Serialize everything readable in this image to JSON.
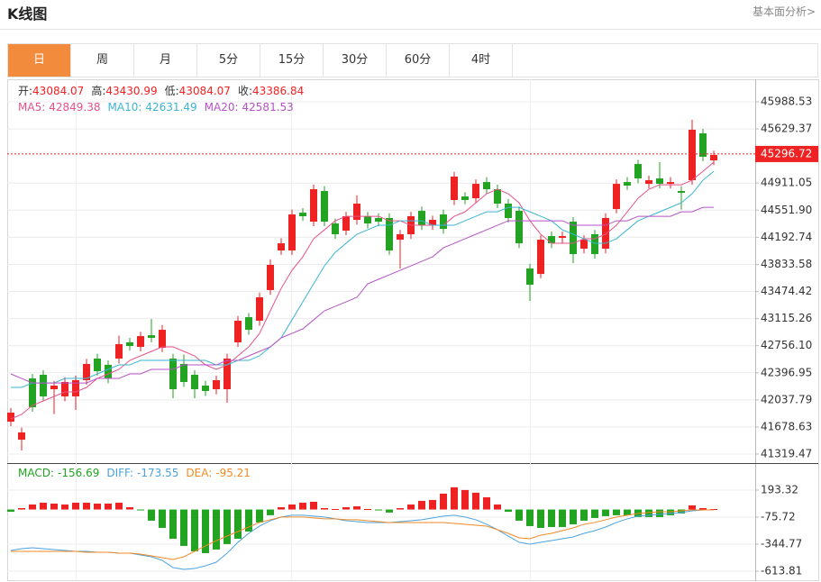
{
  "header": {
    "title": "K线图",
    "link": "基本面分析>"
  },
  "tabs": [
    "日",
    "周",
    "月",
    "5分",
    "15分",
    "30分",
    "60分",
    "4时"
  ],
  "active_tab": 0,
  "chart_data": [
    {
      "type": "candlestick",
      "ohlc_labels": [
        {
          "label": "开:",
          "value": 43084.07
        },
        {
          "label": "高:",
          "value": 43430.99
        },
        {
          "label": "低:",
          "value": 43084.07
        },
        {
          "label": "收:",
          "value": 43386.84
        }
      ],
      "up_color": "#ee2222",
      "down_color": "#22a322",
      "open": [
        41749,
        41510,
        42322,
        42370,
        42179,
        42084,
        42084,
        42299,
        42585,
        42502,
        42585,
        42800,
        42740,
        42895,
        42728,
        42585,
        42514,
        42370,
        42227,
        42179,
        42179,
        42800,
        43134,
        43087,
        43493,
        44018,
        44018,
        44519,
        44400,
        44806,
        44376,
        44281,
        44424,
        44472,
        44448,
        44448,
        44161,
        44233,
        44543,
        44352,
        44496,
        44687,
        44734,
        44710,
        44925,
        44830,
        44639,
        44543,
        43779,
        43707,
        44209,
        44185,
        44400,
        44042,
        44233,
        44042,
        44567,
        44925,
        45164,
        44901,
        44973,
        44901,
        44806,
        44949,
        45570,
        45212
      ],
      "high": [
        41930,
        41670,
        42380,
        42430,
        42290,
        42340,
        42360,
        42580,
        42650,
        42560,
        42890,
        42860,
        42940,
        43110,
        43030,
        42650,
        42640,
        42430,
        42290,
        42360,
        42650,
        43150,
        43190,
        43460,
        43900,
        44180,
        44560,
        44580,
        44890,
        44870,
        44440,
        44530,
        44750,
        44530,
        44510,
        44510,
        44290,
        44530,
        44600,
        44480,
        44560,
        45060,
        44790,
        44960,
        44990,
        44890,
        44700,
        44600,
        43840,
        44220,
        44270,
        44270,
        44460,
        44220,
        44290,
        44510,
        44960,
        44990,
        45220,
        45010,
        45188,
        44990,
        44870,
        45750,
        45630,
        45340
      ],
      "low": [
        41690,
        41367,
        41880,
        42020,
        41850,
        42020,
        41904,
        42240,
        42360,
        42260,
        42520,
        42690,
        42680,
        42800,
        42670,
        42060,
        42210,
        42060,
        42090,
        42110,
        42000,
        42740,
        42900,
        43020,
        43430,
        43960,
        43960,
        44410,
        44340,
        44340,
        44170,
        44220,
        44360,
        44310,
        44340,
        43960,
        43780,
        44170,
        44290,
        44290,
        44240,
        44620,
        44630,
        44650,
        44770,
        44580,
        44390,
        44050,
        43349,
        43650,
        44050,
        44120,
        43850,
        43980,
        43910,
        43980,
        44510,
        44820,
        44910,
        44840,
        44840,
        44840,
        44560,
        44890,
        45200,
        45150
      ],
      "close": [
        41869,
        41606,
        41940,
        42084,
        42227,
        42275,
        42299,
        42514,
        42418,
        42322,
        42776,
        42752,
        42883,
        42860,
        42967,
        42179,
        42275,
        42179,
        42155,
        42299,
        42585,
        43087,
        42967,
        43397,
        43827,
        44113,
        44496,
        44472,
        44830,
        44400,
        44233,
        44472,
        44639,
        44376,
        44400,
        44018,
        44233,
        44472,
        44352,
        44424,
        44304,
        44997,
        44687,
        44901,
        44830,
        44639,
        44448,
        44113,
        43564,
        44161,
        44113,
        44209,
        43970,
        44161,
        43970,
        44448,
        44901,
        44878,
        44973,
        44949,
        44901,
        44925,
        44782,
        45618,
        45260,
        45284
      ],
      "series": [
        {
          "name": "MA5:",
          "color": "#e5528a",
          "value": 42849.38,
          "values": [
            41785,
            41845,
            41964,
            42024,
            42083,
            42143,
            42143,
            42203,
            42322,
            42382,
            42442,
            42561,
            42621,
            42681,
            42740,
            42740,
            42681,
            42621,
            42501,
            42442,
            42501,
            42621,
            42740,
            42919,
            43218,
            43516,
            43755,
            43934,
            44173,
            44292,
            44411,
            44471,
            44471,
            44471,
            44471,
            44411,
            44411,
            44352,
            44352,
            44352,
            44352,
            44471,
            44530,
            44650,
            44770,
            44830,
            44770,
            44650,
            44411,
            44233,
            44113,
            44113,
            44113,
            44173,
            44173,
            44233,
            44352,
            44530,
            44710,
            44830,
            44889,
            44889,
            44889,
            44949,
            45068,
            45188
          ]
        },
        {
          "name": "MA10:",
          "color": "#3bb5d3",
          "value": 42631.49,
          "values": [
            42203,
            42203,
            42262,
            42262,
            42262,
            42322,
            42322,
            42322,
            42382,
            42442,
            42501,
            42501,
            42561,
            42561,
            42561,
            42561,
            42561,
            42561,
            42561,
            42501,
            42501,
            42561,
            42561,
            42621,
            42740,
            42860,
            43098,
            43337,
            43576,
            43814,
            43994,
            44113,
            44233,
            44292,
            44352,
            44352,
            44411,
            44411,
            44411,
            44352,
            44352,
            44352,
            44411,
            44471,
            44530,
            44530,
            44590,
            44590,
            44530,
            44471,
            44411,
            44292,
            44233,
            44173,
            44113,
            44113,
            44173,
            44292,
            44411,
            44471,
            44530,
            44590,
            44650,
            44770,
            44949,
            45068
          ]
        },
        {
          "name": "MA20:",
          "color": "#b552c6",
          "value": 42581.53,
          "values": [
            42382,
            42322,
            42262,
            42262,
            42262,
            42262,
            42262,
            42262,
            42322,
            42322,
            42322,
            42382,
            42382,
            42442,
            42442,
            42442,
            42501,
            42501,
            42501,
            42501,
            42561,
            42561,
            42621,
            42681,
            42740,
            42860,
            42919,
            42979,
            43098,
            43218,
            43277,
            43337,
            43397,
            43576,
            43636,
            43695,
            43755,
            43814,
            43874,
            43934,
            44053,
            44113,
            44173,
            44233,
            44292,
            44352,
            44411,
            44411,
            44411,
            44411,
            44411,
            44411,
            44352,
            44352,
            44352,
            44352,
            44411,
            44411,
            44471,
            44471,
            44471,
            44471,
            44530,
            44530,
            44590,
            44590
          ]
        }
      ],
      "last_price": 45296.72,
      "ylim": [
        41200,
        46287
      ],
      "yticks": [
        45988.53,
        45629.37,
        44911.05,
        {
          "value": 44551.9,
          "label": "44551.90"
        },
        44192.74,
        43833.58,
        43474.42,
        43115.26,
        {
          "value": 42756.1,
          "label": "42756.10"
        },
        42396.95,
        42037.79,
        41678.63,
        41319.47
      ],
      "grid": true
    },
    {
      "type": "macd",
      "up_color": "#ee2222",
      "down_color": "#22a322",
      "histogram": {
        "name": "MACD:",
        "color": "#22a322",
        "value": -156.69,
        "values": [
          -22,
          14,
          50,
          68,
          59,
          50,
          68,
          68,
          59,
          59,
          68,
          23,
          -4,
          -111,
          -183,
          -291,
          -362,
          -416,
          -434,
          -398,
          -344,
          -291,
          -219,
          -129,
          -57,
          23,
          50,
          68,
          77,
          14,
          5,
          23,
          32,
          5,
          -4,
          -30,
          14,
          50,
          86,
          95,
          158,
          221,
          194,
          167,
          122,
          50,
          -22,
          -111,
          -165,
          -183,
          -174,
          -174,
          -147,
          -111,
          -84,
          -66,
          -57,
          -57,
          -75,
          -75,
          -75,
          -57,
          -39,
          41,
          14,
          5
        ]
      },
      "series": [
        {
          "name": "DIFF:",
          "color": "#4aa3df",
          "value": -173.55,
          "values": [
            -407,
            -389,
            -380,
            -389,
            -398,
            -407,
            -416,
            -416,
            -425,
            -425,
            -434,
            -434,
            -452,
            -470,
            -506,
            -578,
            -595,
            -587,
            -560,
            -524,
            -434,
            -326,
            -237,
            -165,
            -111,
            -75,
            -57,
            -57,
            -66,
            -75,
            -93,
            -111,
            -120,
            -129,
            -129,
            -129,
            -120,
            -111,
            -102,
            -84,
            -66,
            -57,
            -75,
            -102,
            -147,
            -201,
            -264,
            -326,
            -344,
            -326,
            -309,
            -291,
            -273,
            -237,
            -210,
            -174,
            -129,
            -93,
            -66,
            -57,
            -48,
            -39,
            -30,
            -13,
            -4,
            -4
          ]
        },
        {
          "name": "DEA:",
          "color": "#f08a24",
          "value": -95.21,
          "values": [
            -416,
            -416,
            -416,
            -416,
            -416,
            -416,
            -416,
            -425,
            -425,
            -425,
            -434,
            -434,
            -443,
            -461,
            -479,
            -497,
            -470,
            -416,
            -362,
            -309,
            -264,
            -219,
            -174,
            -129,
            -102,
            -75,
            -75,
            -75,
            -84,
            -93,
            -93,
            -102,
            -102,
            -111,
            -120,
            -129,
            -129,
            -129,
            -129,
            -129,
            -129,
            -138,
            -147,
            -156,
            -165,
            -201,
            -237,
            -282,
            -291,
            -255,
            -237,
            -210,
            -183,
            -147,
            -129,
            -102,
            -75,
            -57,
            -39,
            -30,
            -22,
            -22,
            -13,
            -4,
            -4,
            -4
          ]
        }
      ],
      "ylim": [
        -712,
        453
      ],
      "yticks": [
        193.32,
        -75.72,
        -344.77,
        -613.81
      ],
      "grid": true
    }
  ]
}
